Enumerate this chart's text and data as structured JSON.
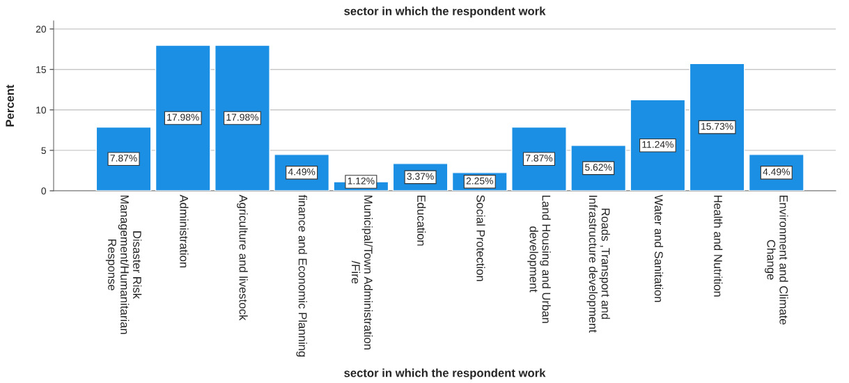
{
  "chart_data": {
    "type": "bar",
    "title": "sector in which the respondent work",
    "xlabel": "sector in which the respondent work",
    "ylabel": "Percent",
    "categories": [
      "Disaster Risk\nManagement/Humanitarian\nResponse",
      "Administration",
      "Agriculture and livestock",
      "finance and Economic Planning",
      "Municipal/Town Administration\n/Fire",
      "Education",
      "Social Protection",
      "Land Housing and Urban\ndevelopment",
      "Roads ,Transport and\nInfrastructure development",
      "Water and Sanitation",
      "Health and Nutrition",
      "Environment and Climate\nChange"
    ],
    "values": [
      7.87,
      17.98,
      17.98,
      4.49,
      1.12,
      3.37,
      2.25,
      7.87,
      5.62,
      11.24,
      15.73,
      4.49
    ],
    "value_labels": [
      "7.87%",
      "17.98%",
      "17.98%",
      "4.49%",
      "1.12%",
      "3.37%",
      "2.25%",
      "7.87%",
      "5.62%",
      "11.24%",
      "15.73%",
      "4.49%"
    ],
    "color": "#1a8fe3",
    "ylim": [
      0,
      21
    ],
    "yticks": [
      0,
      5,
      10,
      15,
      20
    ],
    "grid": "y"
  }
}
